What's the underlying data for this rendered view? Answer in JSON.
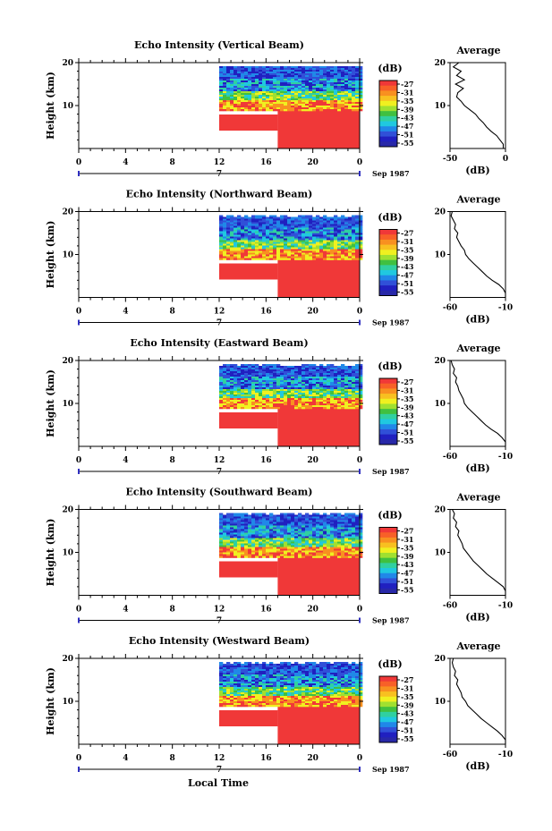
{
  "figure": {
    "x_axis_label": "Local Time",
    "height_axis_label": "Height (km)",
    "date_label": "Sep 1987",
    "date_marker": "7",
    "time_ticks": [
      "0",
      "4",
      "8",
      "12",
      "16",
      "20",
      "0"
    ],
    "colorbar_unit": "(dB)",
    "colorbar_ticks": [
      "-27",
      "-31",
      "-35",
      "-39",
      "-43",
      "-47",
      "-51",
      "-55"
    ],
    "colors": {
      "blue": "#2020c0",
      "cyan": "#20c8e0",
      "green": "#40c040",
      "yellow": "#f0f020",
      "orange": "#f89020",
      "red": "#f03838"
    }
  },
  "chart_data": [
    {
      "type": "heatmap",
      "title": "Echo Intensity (Vertical Beam)",
      "ylabel": "Height (km)",
      "xlabel": "Local Time",
      "xlim": [
        0,
        24
      ],
      "ylim": [
        0,
        20
      ],
      "y_ticks": [
        "20",
        "10"
      ],
      "data_start_hour": 12,
      "colorbar_range_db": [
        -55,
        -27
      ],
      "average_profile": {
        "title": "Average",
        "xlabel": "(dB)",
        "x_ticks": [
          "-50",
          "0"
        ],
        "xlim": [
          -50,
          0
        ],
        "y_ticks": [
          "20",
          "10"
        ],
        "heights_km": [
          1,
          2,
          3,
          4,
          5,
          6,
          7,
          8,
          9,
          10,
          11,
          12,
          13,
          14,
          15,
          16,
          17,
          18,
          19,
          20
        ],
        "values_db": [
          -2,
          -5,
          -8,
          -13,
          -17,
          -20,
          -24,
          -27,
          -32,
          -37,
          -40,
          -44,
          -43,
          -38,
          -45,
          -37,
          -44,
          -40,
          -47,
          -42
        ]
      }
    },
    {
      "type": "heatmap",
      "title": "Echo Intensity (Northward Beam)",
      "ylabel": "Height (km)",
      "xlabel": "Local Time",
      "xlim": [
        0,
        24
      ],
      "ylim": [
        0,
        20
      ],
      "y_ticks": [
        "20",
        "10"
      ],
      "data_start_hour": 12,
      "colorbar_range_db": [
        -55,
        -27
      ],
      "average_profile": {
        "title": "Average",
        "xlabel": "(dB)",
        "x_ticks": [
          "-60",
          "-10"
        ],
        "xlim": [
          -60,
          -10
        ],
        "y_ticks": [
          "20",
          "10"
        ],
        "heights_km": [
          1,
          2,
          3,
          4,
          5,
          6,
          7,
          8,
          9,
          10,
          11,
          12,
          13,
          14,
          15,
          16,
          17,
          18,
          19,
          20
        ],
        "values_db": [
          -8,
          -12,
          -16,
          -22,
          -27,
          -31,
          -35,
          -39,
          -43,
          -46,
          -47,
          -50,
          -52,
          -54,
          -53,
          -56,
          -55,
          -57,
          -59,
          -58
        ]
      }
    },
    {
      "type": "heatmap",
      "title": "Echo Intensity (Eastward Beam)",
      "ylabel": "Height (km)",
      "xlabel": "Local Time",
      "xlim": [
        0,
        24
      ],
      "ylim": [
        0,
        20
      ],
      "y_ticks": [
        "20",
        "10"
      ],
      "data_start_hour": 12,
      "colorbar_range_db": [
        -55,
        -27
      ],
      "average_profile": {
        "title": "Average",
        "xlabel": "(dB)",
        "x_ticks": [
          "-60",
          "-10"
        ],
        "xlim": [
          -60,
          -10
        ],
        "y_ticks": [
          "20",
          "10"
        ],
        "heights_km": [
          1,
          2,
          3,
          4,
          5,
          6,
          7,
          8,
          9,
          10,
          11,
          12,
          13,
          14,
          15,
          16,
          17,
          18,
          19,
          20
        ],
        "values_db": [
          -9,
          -13,
          -17,
          -23,
          -28,
          -32,
          -36,
          -40,
          -44,
          -47,
          -48,
          -50,
          -52,
          -53,
          -55,
          -54,
          -57,
          -56,
          -58,
          -59
        ]
      }
    },
    {
      "type": "heatmap",
      "title": "Echo Intensity (Southward Beam)",
      "ylabel": "Height (km)",
      "xlabel": "Local Time",
      "xlim": [
        0,
        24
      ],
      "ylim": [
        0,
        20
      ],
      "y_ticks": [
        "20",
        "10"
      ],
      "data_start_hour": 12,
      "colorbar_range_db": [
        -55,
        -27
      ],
      "average_profile": {
        "title": "Average",
        "xlabel": "(dB)",
        "x_ticks": [
          "-60",
          "-10"
        ],
        "xlim": [
          -60,
          -10
        ],
        "y_ticks": [
          "20",
          "10"
        ],
        "heights_km": [
          1,
          2,
          3,
          4,
          5,
          6,
          7,
          8,
          9,
          10,
          11,
          12,
          13,
          14,
          15,
          16,
          17,
          18,
          19,
          20
        ],
        "values_db": [
          -8,
          -12,
          -17,
          -22,
          -27,
          -31,
          -35,
          -39,
          -42,
          -45,
          -48,
          -49,
          -51,
          -53,
          -52,
          -55,
          -54,
          -57,
          -56,
          -58
        ]
      }
    },
    {
      "type": "heatmap",
      "title": "Echo Intensity (Westward Beam)",
      "ylabel": "Height (km)",
      "xlabel": "Local Time",
      "xlim": [
        0,
        24
      ],
      "ylim": [
        0,
        20
      ],
      "y_ticks": [
        "20",
        "10"
      ],
      "data_start_hour": 12,
      "colorbar_range_db": [
        -55,
        -27
      ],
      "average_profile": {
        "title": "Average",
        "xlabel": "(dB)",
        "x_ticks": [
          "-60",
          "-10"
        ],
        "xlim": [
          -60,
          -10
        ],
        "y_ticks": [
          "20",
          "10"
        ],
        "heights_km": [
          1,
          2,
          3,
          4,
          5,
          6,
          7,
          8,
          9,
          10,
          11,
          12,
          13,
          14,
          15,
          16,
          17,
          18,
          19,
          20
        ],
        "values_db": [
          -9,
          -13,
          -17,
          -22,
          -27,
          -32,
          -36,
          -40,
          -44,
          -46,
          -49,
          -50,
          -52,
          -54,
          -53,
          -56,
          -55,
          -57,
          -58,
          -57
        ]
      }
    }
  ]
}
